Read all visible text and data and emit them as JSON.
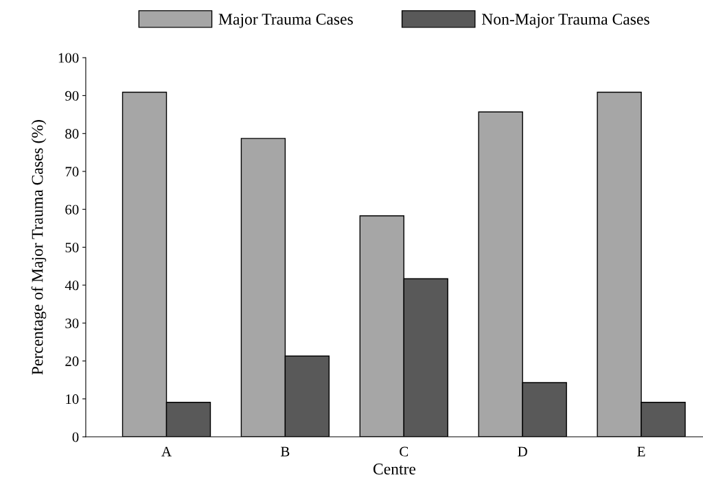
{
  "chart_data": {
    "type": "bar",
    "xlabel": "Centre",
    "ylabel": "Percentage of Major Trauma Cases (%)",
    "categories": [
      "A",
      "B",
      "C",
      "D",
      "E"
    ],
    "series": [
      {
        "name": "Major Trauma Cases",
        "color": "#a6a6a6",
        "values": [
          90.9,
          78.7,
          58.3,
          85.7,
          90.9
        ]
      },
      {
        "name": "Non-Major Trauma Cases",
        "color": "#595959",
        "values": [
          9.1,
          21.3,
          41.7,
          14.3,
          9.1
        ]
      }
    ],
    "ylim": [
      0,
      100
    ],
    "yticks": [
      0,
      10,
      20,
      30,
      40,
      50,
      60,
      70,
      80,
      90,
      100
    ],
    "grid": false,
    "legend": "top"
  }
}
